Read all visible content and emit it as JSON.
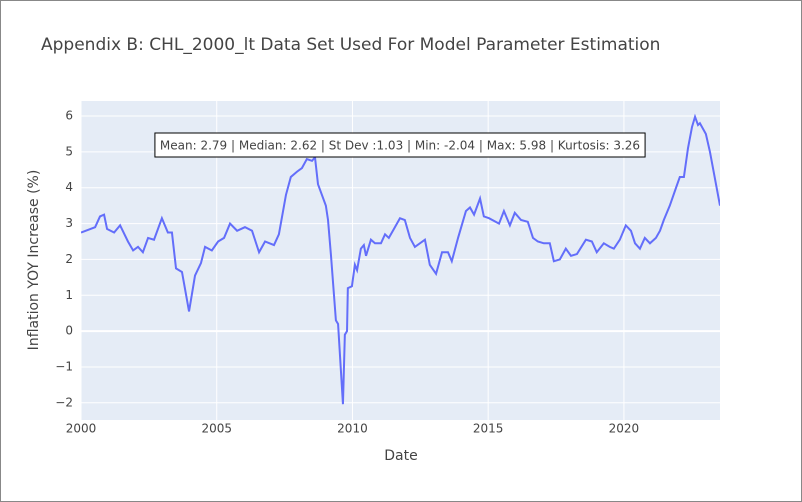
{
  "chart_data": {
    "type": "line",
    "title": "Appendix B: CHL_2000_lt Data Set Used For Model Parameter Estimation",
    "x_label": "Date",
    "y_label": "Inflation YOY Increase (%)",
    "annotation": "Mean: 2.79 | Median: 2.62 | St Dev :1.03 | Min: -2.04 | Max: 5.98 | Kurtosis: 3.26",
    "x": [
      2000,
      2000.52,
      2000.7,
      2000.85,
      2000.96,
      2001.22,
      2001.44,
      2001.73,
      2001.92,
      2002.1,
      2002.28,
      2002.47,
      2002.69,
      2002.98,
      2003.2,
      2003.35,
      2003.5,
      2003.72,
      2003.98,
      2004.2,
      2004.42,
      2004.57,
      2004.82,
      2005.05,
      2005.27,
      2005.49,
      2005.75,
      2006.04,
      2006.3,
      2006.56,
      2006.78,
      2007.11,
      2007.29,
      2007.55,
      2007.73,
      2007.96,
      2008.14,
      2008.32,
      2008.51,
      2008.62,
      2008.73,
      2009.02,
      2009.1,
      2009.21,
      2009.39,
      2009.47,
      2009.65,
      2009.72,
      2009.8,
      2009.83,
      2009.98,
      2010.09,
      2010.17,
      2010.31,
      2010.42,
      2010.5,
      2010.68,
      2010.83,
      2011.05,
      2011.2,
      2011.34,
      2011.49,
      2011.75,
      2011.93,
      2012.12,
      2012.3,
      2012.67,
      2012.85,
      2013.08,
      2013.3,
      2013.52,
      2013.66,
      2013.89,
      2014.18,
      2014.33,
      2014.48,
      2014.7,
      2014.84,
      2015.03,
      2015.4,
      2015.58,
      2015.8,
      2015.98,
      2016.21,
      2016.46,
      2016.65,
      2016.83,
      2017.05,
      2017.27,
      2017.42,
      2017.64,
      2017.86,
      2018.05,
      2018.27,
      2018.6,
      2018.82,
      2019.0,
      2019.26,
      2019.48,
      2019.63,
      2019.85,
      2020.07,
      2020.26,
      2020.41,
      2020.59,
      2020.77,
      2020.96,
      2021.18,
      2021.33,
      2021.47,
      2021.69,
      2021.92,
      2022.06,
      2022.21,
      2022.36,
      2022.51,
      2022.62,
      2022.73,
      2022.8,
      2023.02,
      2023.17,
      2023.54
    ],
    "series": [
      {
        "name": "Inflation",
        "color": "#636efa",
        "values": [
          2.75,
          2.9,
          3.2,
          3.25,
          2.85,
          2.75,
          2.95,
          2.5,
          2.25,
          2.35,
          2.2,
          2.6,
          2.55,
          3.15,
          2.75,
          2.75,
          1.75,
          1.65,
          0.55,
          1.55,
          1.9,
          2.35,
          2.25,
          2.5,
          2.6,
          3.0,
          2.8,
          2.9,
          2.8,
          2.2,
          2.5,
          2.4,
          2.7,
          3.8,
          4.3,
          4.45,
          4.55,
          4.8,
          4.75,
          4.85,
          4.1,
          3.5,
          3.1,
          2.1,
          0.3,
          0.2,
          -2.04,
          -0.1,
          0.0,
          1.2,
          1.25,
          1.85,
          1.7,
          2.3,
          2.4,
          2.1,
          2.55,
          2.45,
          2.45,
          2.7,
          2.6,
          2.8,
          3.15,
          3.1,
          2.6,
          2.35,
          2.55,
          1.85,
          1.6,
          2.2,
          2.2,
          1.95,
          2.6,
          3.35,
          3.45,
          3.25,
          3.7,
          3.2,
          3.15,
          3.0,
          3.35,
          2.95,
          3.3,
          3.1,
          3.05,
          2.6,
          2.5,
          2.45,
          2.45,
          1.95,
          2.0,
          2.3,
          2.1,
          2.15,
          2.55,
          2.5,
          2.2,
          2.45,
          2.35,
          2.3,
          2.55,
          2.95,
          2.8,
          2.45,
          2.3,
          2.6,
          2.45,
          2.6,
          2.8,
          3.1,
          3.5,
          4.0,
          4.3,
          4.3,
          5.1,
          5.7,
          5.98,
          5.75,
          5.8,
          5.5,
          5.0,
          3.5
        ]
      }
    ],
    "xlim": [
      2000,
      2023.54
    ],
    "xticks": [
      2000,
      2005,
      2010,
      2015,
      2020
    ],
    "ylim": [
      -2.48,
      6.42
    ],
    "yticks": [
      {
        "value": -2,
        "label": "−2"
      },
      {
        "value": -1,
        "label": "−1"
      },
      0,
      1,
      2,
      3,
      4,
      5,
      6
    ],
    "grid": true,
    "background": "#e5ecf6"
  }
}
